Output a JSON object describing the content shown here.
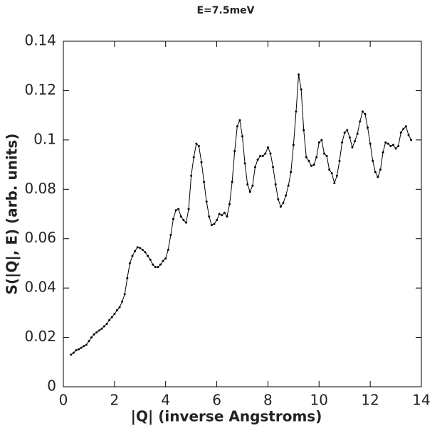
{
  "chart_data": {
    "type": "line",
    "title": "E=7.5meV",
    "xlabel": "|Q| (inverse Angstroms)",
    "ylabel": "S(|Q|, E) (arb. units)",
    "xlim": [
      0,
      14
    ],
    "ylim": [
      0,
      0.14
    ],
    "xticks": [
      0,
      2,
      4,
      6,
      8,
      10,
      12,
      14
    ],
    "yticks": [
      0,
      0.02,
      0.04,
      0.06,
      0.08,
      0.1,
      0.12,
      0.14
    ],
    "x": [
      0.3,
      0.4,
      0.5,
      0.6,
      0.7,
      0.8,
      0.9,
      1.0,
      1.1,
      1.2,
      1.3,
      1.4,
      1.5,
      1.6,
      1.7,
      1.8,
      1.9,
      2.0,
      2.1,
      2.2,
      2.3,
      2.4,
      2.5,
      2.6,
      2.7,
      2.8,
      2.9,
      3.0,
      3.1,
      3.2,
      3.3,
      3.4,
      3.5,
      3.6,
      3.7,
      3.8,
      3.9,
      4.0,
      4.1,
      4.2,
      4.3,
      4.4,
      4.5,
      4.6,
      4.7,
      4.8,
      4.9,
      5.0,
      5.1,
      5.2,
      5.3,
      5.4,
      5.5,
      5.6,
      5.7,
      5.8,
      5.9,
      6.0,
      6.1,
      6.2,
      6.3,
      6.4,
      6.5,
      6.6,
      6.7,
      6.8,
      6.9,
      7.0,
      7.1,
      7.2,
      7.3,
      7.4,
      7.5,
      7.6,
      7.7,
      7.8,
      7.9,
      8.0,
      8.1,
      8.2,
      8.3,
      8.4,
      8.5,
      8.6,
      8.7,
      8.8,
      8.9,
      9.0,
      9.1,
      9.2,
      9.3,
      9.4,
      9.5,
      9.6,
      9.7,
      9.8,
      9.9,
      10.0,
      10.1,
      10.2,
      10.3,
      10.4,
      10.5,
      10.6,
      10.7,
      10.8,
      10.9,
      11.0,
      11.1,
      11.2,
      11.3,
      11.4,
      11.5,
      11.6,
      11.7,
      11.8,
      11.9,
      12.0,
      12.1,
      12.2,
      12.3,
      12.4,
      12.5,
      12.6,
      12.7,
      12.8,
      12.9,
      13.0,
      13.1,
      13.2,
      13.3,
      13.4,
      13.5,
      13.6
    ],
    "series": [
      {
        "color": "#000000",
        "values": [
          0.013,
          0.0138,
          0.0148,
          0.0152,
          0.0158,
          0.0165,
          0.017,
          0.0185,
          0.02,
          0.0212,
          0.022,
          0.0228,
          0.0235,
          0.0245,
          0.0255,
          0.027,
          0.0282,
          0.0295,
          0.031,
          0.0322,
          0.0345,
          0.0375,
          0.044,
          0.05,
          0.053,
          0.055,
          0.0565,
          0.0562,
          0.0555,
          0.0545,
          0.053,
          0.0515,
          0.0495,
          0.0485,
          0.0485,
          0.0495,
          0.051,
          0.052,
          0.0555,
          0.0615,
          0.068,
          0.0715,
          0.072,
          0.069,
          0.0675,
          0.0665,
          0.072,
          0.0855,
          0.093,
          0.0985,
          0.0975,
          0.091,
          0.083,
          0.075,
          0.069,
          0.0655,
          0.066,
          0.0675,
          0.07,
          0.0695,
          0.0705,
          0.069,
          0.074,
          0.083,
          0.0955,
          0.1055,
          0.108,
          0.1015,
          0.0905,
          0.082,
          0.079,
          0.0815,
          0.089,
          0.092,
          0.0935,
          0.0935,
          0.0945,
          0.097,
          0.0945,
          0.089,
          0.082,
          0.076,
          0.073,
          0.0745,
          0.0775,
          0.0815,
          0.087,
          0.098,
          0.1115,
          0.1265,
          0.1205,
          0.104,
          0.093,
          0.0915,
          0.0895,
          0.09,
          0.093,
          0.099,
          0.1,
          0.0945,
          0.0935,
          0.088,
          0.0865,
          0.0825,
          0.0855,
          0.0915,
          0.099,
          0.103,
          0.104,
          0.101,
          0.097,
          0.0995,
          0.1025,
          0.1075,
          0.1115,
          0.1105,
          0.105,
          0.0985,
          0.0915,
          0.087,
          0.085,
          0.088,
          0.095,
          0.099,
          0.0985,
          0.0975,
          0.098,
          0.0965,
          0.0975,
          0.103,
          0.1045,
          0.1055,
          0.102,
          0.1
        ]
      }
    ]
  }
}
